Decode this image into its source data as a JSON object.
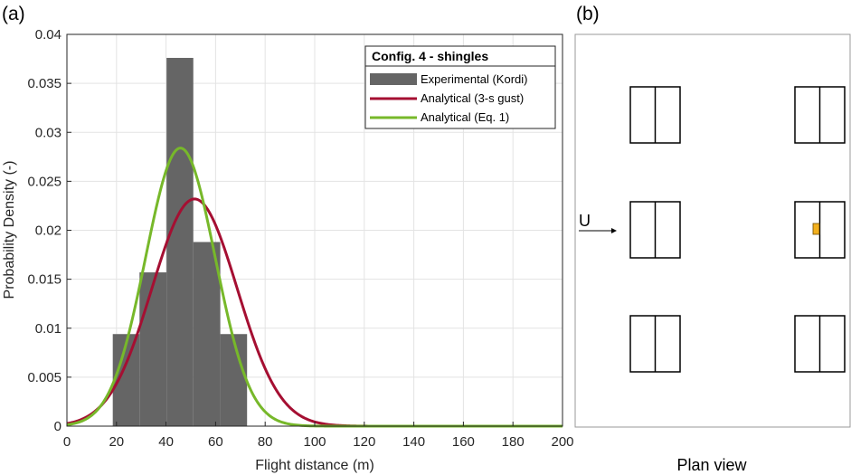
{
  "panel_a_label": "(a)",
  "panel_b_label": "(b)",
  "chart_data": {
    "type": "bar",
    "xlabel": "Flight distance (m)",
    "ylabel": "Probability Density (-)",
    "xlim": [
      0,
      200
    ],
    "ylim": [
      0,
      0.04
    ],
    "xticks": [
      0,
      20,
      40,
      60,
      80,
      100,
      120,
      140,
      160,
      180,
      200
    ],
    "yticks": [
      0,
      0.005,
      0.01,
      0.015,
      0.02,
      0.025,
      0.03,
      0.035,
      0.04
    ],
    "xtick_labels": [
      "0",
      "20",
      "40",
      "60",
      "80",
      "100",
      "120",
      "140",
      "160",
      "180",
      "200"
    ],
    "ytick_labels": [
      "0",
      "0.005",
      "0.01",
      "0.015",
      "0.02",
      "0.025",
      "0.03",
      "0.035",
      "0.04"
    ],
    "grid": true,
    "legend": {
      "title": "Config. 4 - shingles",
      "position": "top-right",
      "entries": [
        "Experimental (Kordi)",
        "Analytical (3-s gust)",
        "Analytical (Eq. 1)"
      ]
    },
    "histogram": {
      "name": "Experimental (Kordi)",
      "color": "#656565",
      "bins": [
        {
          "x0": 18.5,
          "x1": 29.3,
          "value": 0.0094
        },
        {
          "x0": 29.3,
          "x1": 40.2,
          "value": 0.0157
        },
        {
          "x0": 40.2,
          "x1": 51.0,
          "value": 0.0376
        },
        {
          "x0": 51.0,
          "x1": 61.9,
          "value": 0.0188
        },
        {
          "x0": 61.9,
          "x1": 72.7,
          "value": 0.0094
        }
      ]
    },
    "series": [
      {
        "name": "Analytical (3-s gust)",
        "color": "#a50f32",
        "mean": 51.5,
        "sd": 17.2
      },
      {
        "name": "Analytical (Eq. 1)",
        "color": "#77b82a",
        "mean": 45.8,
        "sd": 14.05
      }
    ]
  },
  "plan_view": {
    "wind_label": "U",
    "caption": "Plan view",
    "marker_color": "#f2b01e"
  }
}
